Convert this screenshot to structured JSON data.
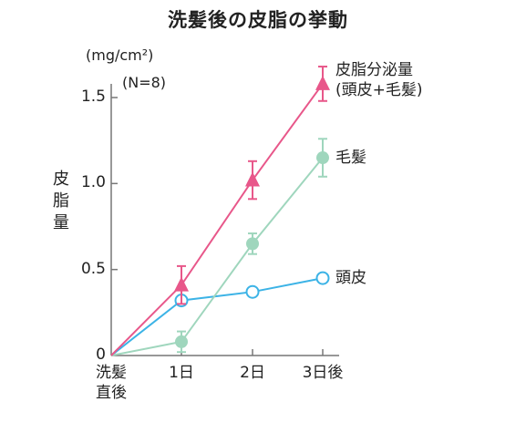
{
  "chart_data": {
    "type": "line",
    "title": "洗髪後の皮脂の挙動",
    "ylabel": "皮脂量",
    "y_unit": "(mg/cm²)",
    "note": "(N=8)",
    "categories": [
      "洗髪直後",
      "1日",
      "2日",
      "3日後"
    ],
    "x_tick_labels": [
      "洗髪\n直後",
      "1日",
      "2日",
      "3日後"
    ],
    "ylim": [
      0,
      1.7
    ],
    "y_ticks": [
      0,
      0.5,
      1.0,
      1.5
    ],
    "y_tick_labels": [
      "0",
      "0.5",
      "1.0",
      "1.5"
    ],
    "grid": false,
    "legend": "labels placed at line ends (right)",
    "series": [
      {
        "name": "皮脂分泌量\n(頭皮+毛髪)",
        "values": [
          0,
          0.41,
          1.02,
          1.58
        ],
        "error": [
          null,
          0.11,
          0.11,
          0.1
        ],
        "color": "#e8578a",
        "marker": "triangle"
      },
      {
        "name": "毛髪",
        "values": [
          0,
          0.08,
          0.65,
          1.15
        ],
        "error": [
          null,
          0.06,
          0.06,
          0.11
        ],
        "color": "#9fd6bd",
        "marker": "filled-circle"
      },
      {
        "name": "頭皮",
        "values": [
          0,
          0.32,
          0.37,
          0.45
        ],
        "error": [
          null,
          null,
          null,
          null
        ],
        "color": "#3cb3e6",
        "marker": "open-circle"
      }
    ]
  }
}
